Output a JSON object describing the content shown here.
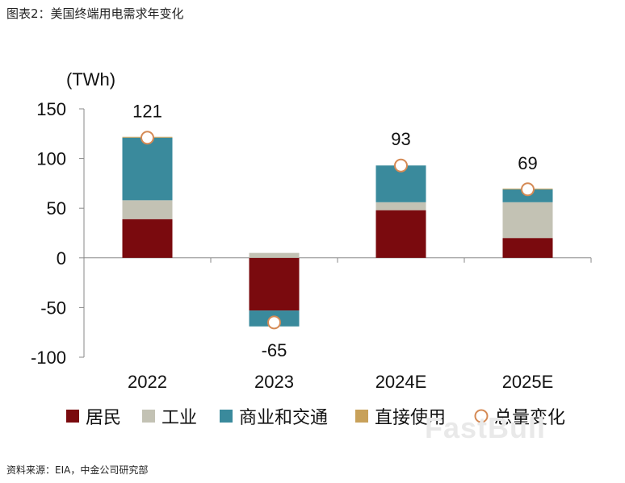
{
  "figure_title": "图表2：美国终端用电需求年变化",
  "source": "资料来源：EIA，中金公司研究部",
  "watermark": "FastBull",
  "colors": {
    "居民": "#7a0a0e",
    "工业": "#c3c2b4",
    "商业和交通": "#3a8a9c",
    "直接使用": "#c8a15a",
    "总量变化_fill": "#ffffff",
    "总量变化_stroke": "#d58a55"
  },
  "chart_data": {
    "type": "bar",
    "stacked": true,
    "unit_label": "(TWh)",
    "categories": [
      "2022",
      "2023",
      "2024E",
      "2025E"
    ],
    "ylim": [
      -100,
      150
    ],
    "yticks": [
      150,
      100,
      50,
      0,
      -50,
      -100
    ],
    "series": [
      {
        "name": "居民",
        "values": [
          39,
          -53,
          48,
          20
        ]
      },
      {
        "name": "工业",
        "values": [
          19,
          5,
          8,
          36
        ]
      },
      {
        "name": "商业和交通",
        "values": [
          63,
          -16,
          37,
          13
        ]
      },
      {
        "name": "直接使用",
        "values": [
          0.8,
          0,
          0,
          0.8
        ]
      }
    ],
    "totals": {
      "name": "总量变化",
      "values": [
        121,
        -65,
        93,
        69
      ]
    },
    "total_labels": [
      "121",
      "-65",
      "93",
      "69"
    ],
    "legend": [
      "居民",
      "工业",
      "商业和交通",
      "直接使用",
      "总量变化"
    ]
  }
}
